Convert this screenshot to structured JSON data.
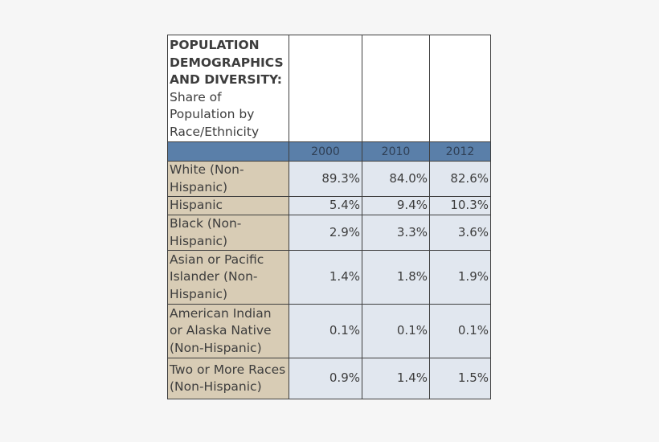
{
  "table": {
    "title_bold_lines": [
      "POPULATION",
      "DEMOGRAPHICS",
      "AND DIVERSITY:"
    ],
    "title_sub_lines": [
      "Share of",
      "Population by",
      "Race/Ethnicity"
    ],
    "years": [
      "2000",
      "2010",
      "2012"
    ],
    "rows": [
      {
        "label": "White (Non-Hispanic)",
        "values": [
          "89.3%",
          "84.0%",
          "82.6%"
        ]
      },
      {
        "label": "Hispanic",
        "values": [
          "5.4%",
          "9.4%",
          "10.3%"
        ]
      },
      {
        "label": "Black (Non-Hispanic)",
        "values": [
          "2.9%",
          "3.3%",
          "3.6%"
        ]
      },
      {
        "label": "Asian or Pacific Islander (Non-Hispanic)",
        "values": [
          "1.4%",
          "1.8%",
          "1.9%"
        ]
      },
      {
        "label": "American Indian or Alaska Native (Non-Hispanic)",
        "values": [
          "0.1%",
          "0.1%",
          "0.1%"
        ]
      },
      {
        "label": "Two or More Races (Non-Hispanic)",
        "values": [
          "0.9%",
          "1.4%",
          "1.5%"
        ]
      }
    ]
  },
  "colors": {
    "header_band": "#5a7fa9",
    "label_column": "#d8ccb5",
    "value_cells": "#e1e7ef",
    "border": "#3f3f3f"
  }
}
